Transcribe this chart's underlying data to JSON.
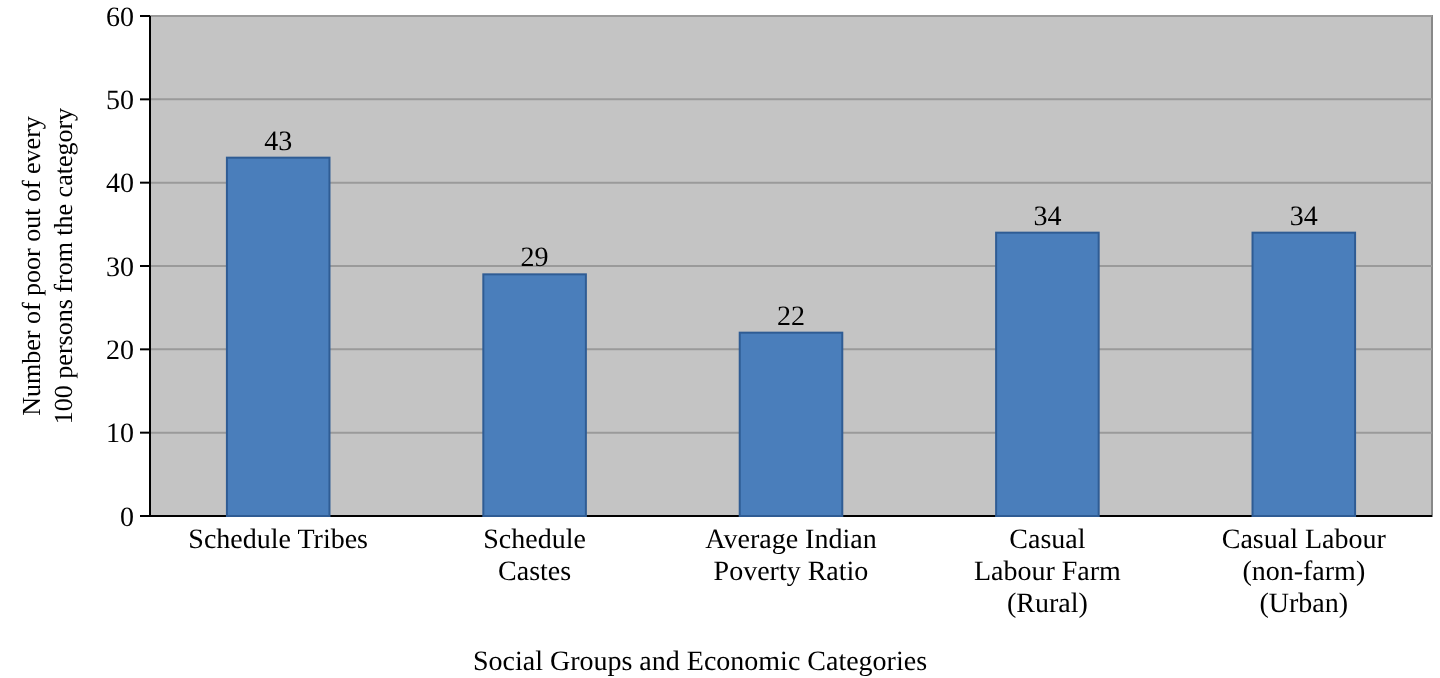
{
  "chart_data": {
    "type": "bar",
    "xlabel": "Social Groups and Economic Categories",
    "ylabel": "Number of poor out of every\n100 persons  from the category",
    "categories": [
      "Schedule Tribes",
      "Schedule\nCastes",
      "Average Indian\nPoverty Ratio",
      "Casual\nLabour Farm\n(Rural)",
      "Casual Labour\n(non-farm)\n(Urban)"
    ],
    "values": [
      43,
      29,
      22,
      34,
      34
    ],
    "color": "#4a7ebb",
    "ylim": [
      0,
      60
    ],
    "yticks": [
      0,
      10,
      20,
      30,
      40,
      50,
      60
    ],
    "grid": "y",
    "data_labels": true
  }
}
